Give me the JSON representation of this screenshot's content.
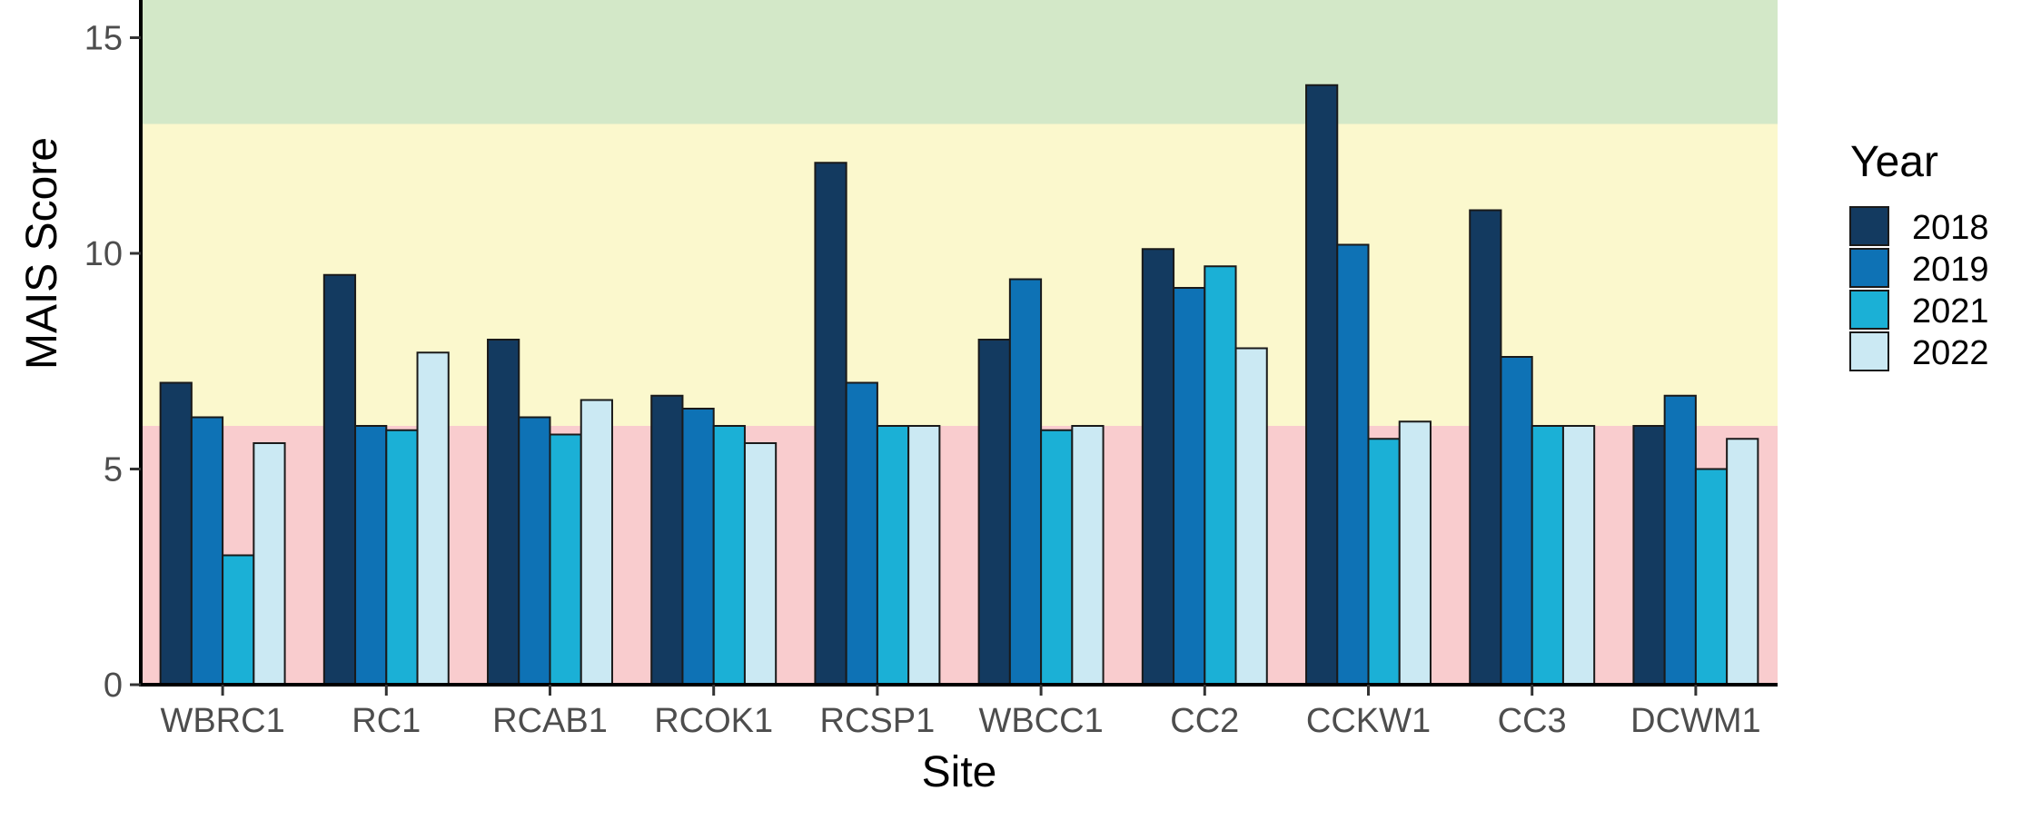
{
  "chart_data": {
    "type": "bar",
    "title": "",
    "xlabel": "Site",
    "ylabel": "MAIS Score",
    "ylim": [
      0,
      15
    ],
    "y_ticks": [
      0,
      5,
      10,
      15
    ],
    "categories": [
      "WBRC1",
      "RC1",
      "RCAB1",
      "RCOK1",
      "RCSP1",
      "WBCC1",
      "CC2",
      "CCKW1",
      "CC3",
      "DCWM1"
    ],
    "series": [
      {
        "name": "2018",
        "color": "#133a60",
        "values": [
          7.0,
          9.5,
          8.0,
          6.7,
          12.1,
          8.0,
          10.1,
          13.9,
          11.0,
          6.0
        ]
      },
      {
        "name": "2019",
        "color": "#0e72b5",
        "values": [
          6.2,
          6.0,
          6.2,
          6.4,
          7.0,
          9.4,
          9.2,
          10.2,
          7.6,
          6.7
        ]
      },
      {
        "name": "2021",
        "color": "#1bb0d6",
        "values": [
          3.0,
          5.9,
          5.8,
          6.0,
          6.0,
          5.9,
          9.7,
          5.7,
          6.0,
          5.0
        ]
      },
      {
        "name": "2022",
        "color": "#cbe9f3",
        "values": [
          5.6,
          7.7,
          6.6,
          5.6,
          6.0,
          6.0,
          7.8,
          6.1,
          6.0,
          5.7
        ]
      }
    ],
    "background_bands": [
      {
        "from": 0,
        "to": 6,
        "color": "#f9ccce"
      },
      {
        "from": 6,
        "to": 13,
        "color": "#fbf8cd"
      },
      {
        "from": 13,
        "to": 15,
        "color": "#d3e8c8"
      }
    ],
    "legend": {
      "title": "Year",
      "position": "right"
    }
  }
}
